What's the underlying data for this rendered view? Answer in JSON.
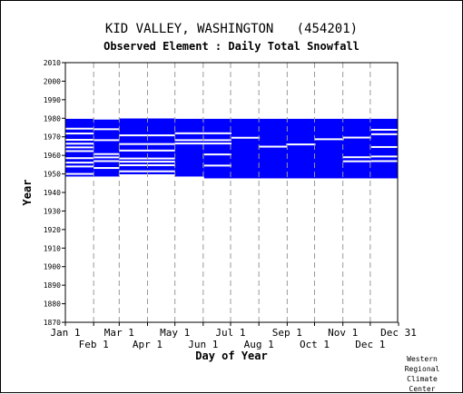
{
  "chart_data": {
    "type": "heatmap",
    "title": "KID VALLEY, WASHINGTON   (454201)",
    "subtitle": "Observed Element : Daily Total Snowfall",
    "xlabel": "Day of Year",
    "ylabel": "Year",
    "credit": [
      "Western",
      "Regional",
      "Climate",
      "Center"
    ],
    "x_range": [
      1,
      365
    ],
    "ylim": [
      1870,
      2010
    ],
    "yticks": [
      1870,
      1880,
      1890,
      1900,
      1910,
      1920,
      1930,
      1940,
      1950,
      1960,
      1970,
      1980,
      1990,
      2000,
      2010
    ],
    "month_ticks_top": [
      {
        "label": "Jan 1",
        "day": 1
      },
      {
        "label": "Mar 1",
        "day": 60
      },
      {
        "label": "May 1",
        "day": 121
      },
      {
        "label": "Jul 1",
        "day": 182
      },
      {
        "label": "Sep 1",
        "day": 244
      },
      {
        "label": "Nov 1",
        "day": 305
      },
      {
        "label": "Dec 31",
        "day": 365
      }
    ],
    "month_ticks_bottom": [
      {
        "label": "Feb 1",
        "day": 32
      },
      {
        "label": "Apr 1",
        "day": 91
      },
      {
        "label": "Jun 1",
        "day": 152
      },
      {
        "label": "Aug 1",
        "day": 213
      },
      {
        "label": "Oct 1",
        "day": 274
      },
      {
        "label": "Dec 1",
        "day": 335
      }
    ],
    "gridlines_days": [
      32,
      60,
      91,
      121,
      152,
      182,
      213,
      244,
      274,
      305,
      335
    ],
    "data_color": "#0000ff",
    "record": [
      {
        "start_day": 1,
        "end_day": 31,
        "year_from": 1948.6,
        "year_to": 1979.7
      },
      {
        "start_day": 32,
        "end_day": 59,
        "year_from": 1948.6,
        "year_to": 1979.3
      },
      {
        "start_day": 60,
        "end_day": 120,
        "year_from": 1949.8,
        "year_to": 1979.9
      },
      {
        "start_day": 121,
        "end_day": 152,
        "year_from": 1948.6,
        "year_to": 1979.7
      },
      {
        "start_day": 153,
        "end_day": 365,
        "year_from": 1947.6,
        "year_to": 1979.7
      }
    ],
    "missing": [
      {
        "start_day": 1,
        "end_day": 31,
        "years": [
          1974.4,
          1971.8,
          1968.4,
          1966.3,
          1964.3,
          1962.3,
          1958.5,
          1956.1,
          1954.0,
          1950.0
        ]
      },
      {
        "start_day": 32,
        "end_day": 59,
        "years": [
          1974.1,
          1968.2,
          1960.7,
          1958.9,
          1956.9,
          1953.2
        ]
      },
      {
        "start_day": 60,
        "end_day": 120,
        "years": [
          1970.8,
          1966.1,
          1962.6,
          1958.3,
          1956.6,
          1954.7,
          1951.4
        ]
      },
      {
        "start_day": 121,
        "end_day": 182,
        "years": [
          1971.9,
          1968.2,
          1966.4
        ]
      },
      {
        "start_day": 153,
        "end_day": 182,
        "years": [
          1960.5,
          1954.5
        ]
      },
      {
        "start_day": 183,
        "end_day": 213,
        "years": [
          1969.5
        ]
      },
      {
        "start_day": 213,
        "end_day": 243,
        "years": [
          1964.7
        ]
      },
      {
        "start_day": 243,
        "end_day": 274,
        "years": [
          1965.9
        ]
      },
      {
        "start_day": 274,
        "end_day": 305,
        "years": [
          1968.7
        ]
      },
      {
        "start_day": 305,
        "end_day": 335,
        "years": [
          1969.6,
          1959.0,
          1956.8
        ]
      },
      {
        "start_day": 336,
        "end_day": 365,
        "years": [
          1973.8,
          1971.4,
          1964.5,
          1959.4,
          1956.9
        ]
      }
    ]
  }
}
